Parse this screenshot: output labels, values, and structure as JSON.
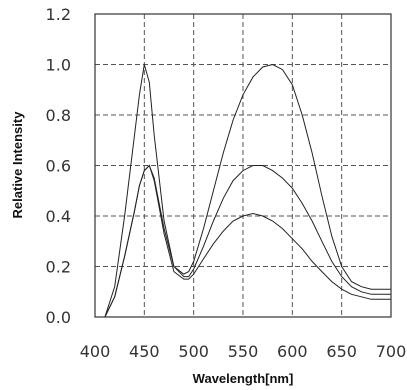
{
  "chart_data": {
    "type": "line",
    "title": "",
    "xlabel": "Wavelength[nm]",
    "ylabel": "Relative Intensity",
    "xlim": [
      400,
      700
    ],
    "ylim": [
      0,
      1.2
    ],
    "x_ticks": [
      "400",
      "450",
      "500",
      "550",
      "600",
      "650",
      "700"
    ],
    "y_ticks": [
      "0.0",
      "0.2",
      "0.4",
      "0.6",
      "0.8",
      "1.0",
      "1.2"
    ],
    "grid": true,
    "legend": "none",
    "line_color": "#222222",
    "series": [
      {
        "x": [
          410,
          420,
          430,
          440,
          445,
          450,
          455,
          460,
          470,
          480,
          490,
          495,
          500,
          510,
          520,
          530,
          540,
          550,
          560,
          570,
          580,
          590,
          600,
          610,
          620,
          630,
          640,
          650,
          660,
          670,
          680,
          690,
          700
        ],
        "values": [
          0.0,
          0.12,
          0.4,
          0.72,
          0.88,
          1.0,
          0.93,
          0.72,
          0.38,
          0.2,
          0.17,
          0.18,
          0.22,
          0.35,
          0.5,
          0.65,
          0.78,
          0.88,
          0.95,
          0.99,
          1.0,
          0.98,
          0.92,
          0.8,
          0.65,
          0.48,
          0.32,
          0.2,
          0.14,
          0.12,
          0.11,
          0.11,
          0.11
        ]
      },
      {
        "x": [
          410,
          420,
          430,
          440,
          445,
          450,
          455,
          460,
          470,
          480,
          490,
          495,
          500,
          510,
          520,
          530,
          540,
          550,
          560,
          570,
          580,
          590,
          600,
          610,
          620,
          630,
          640,
          650,
          660,
          670,
          680,
          690,
          700
        ],
        "values": [
          0.0,
          0.08,
          0.24,
          0.42,
          0.52,
          0.58,
          0.6,
          0.55,
          0.35,
          0.2,
          0.16,
          0.16,
          0.19,
          0.28,
          0.38,
          0.47,
          0.54,
          0.58,
          0.6,
          0.6,
          0.58,
          0.55,
          0.51,
          0.45,
          0.38,
          0.3,
          0.22,
          0.16,
          0.12,
          0.1,
          0.09,
          0.09,
          0.09
        ]
      },
      {
        "x": [
          410,
          420,
          430,
          440,
          445,
          450,
          455,
          460,
          470,
          480,
          490,
          495,
          500,
          510,
          520,
          530,
          540,
          550,
          560,
          570,
          580,
          590,
          600,
          610,
          620,
          630,
          640,
          650,
          660,
          670,
          680,
          690,
          700
        ],
        "values": [
          0.0,
          0.08,
          0.24,
          0.42,
          0.52,
          0.58,
          0.6,
          0.54,
          0.33,
          0.18,
          0.15,
          0.15,
          0.17,
          0.23,
          0.29,
          0.34,
          0.38,
          0.4,
          0.41,
          0.4,
          0.38,
          0.35,
          0.31,
          0.27,
          0.22,
          0.18,
          0.14,
          0.11,
          0.09,
          0.08,
          0.07,
          0.07,
          0.07
        ]
      }
    ]
  }
}
